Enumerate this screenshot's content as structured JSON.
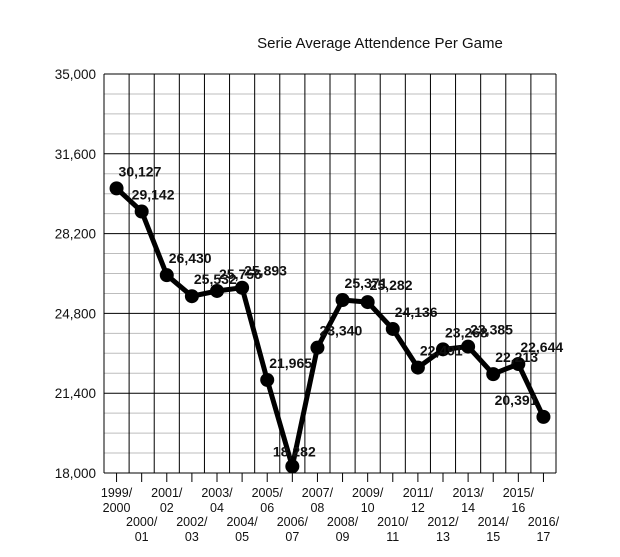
{
  "chart_data": {
    "type": "line",
    "title": "Serie Average Attendence Per Game",
    "xlabel": "",
    "ylabel": "",
    "ylim": [
      18000,
      35000
    ],
    "yticks": [
      "35,000",
      "31,600",
      "28,200",
      "24,800",
      "21,400",
      "18,000"
    ],
    "ytick_values": [
      35000,
      31600,
      28200,
      24800,
      21400,
      18000
    ],
    "grid": true,
    "legend": "none",
    "line_color": "#000000",
    "categories": [
      [
        "1999/",
        "2000"
      ],
      [
        "2000/",
        "01"
      ],
      [
        "2001/",
        "02"
      ],
      [
        "2002/",
        "03"
      ],
      [
        "2003/",
        "04"
      ],
      [
        "2004/",
        "05"
      ],
      [
        "2005/",
        "06"
      ],
      [
        "2006/",
        "07"
      ],
      [
        "2007/",
        "08"
      ],
      [
        "2008/",
        "09"
      ],
      [
        "2009/",
        "10"
      ],
      [
        "2010/",
        "11"
      ],
      [
        "2011/",
        "12"
      ],
      [
        "2012/",
        "13"
      ],
      [
        "2013/",
        "14"
      ],
      [
        "2014/",
        "15"
      ],
      [
        "2015/",
        "16"
      ],
      [
        "2016/",
        "17"
      ]
    ],
    "values": [
      30127,
      29142,
      26430,
      25532,
      25756,
      25893,
      21965,
      18282,
      23340,
      25371,
      25282,
      24136,
      22491,
      23268,
      23385,
      22213,
      22644,
      20391
    ],
    "data_labels": [
      "30,127",
      "29,142",
      "26,430",
      "25,532",
      "25,756",
      "25,893",
      "21,965",
      "18,282",
      "23,340",
      "25,371",
      "25,282",
      "24,136",
      "22,491",
      "23,268",
      "23,385",
      "22,213",
      "22,644",
      "20,391"
    ]
  }
}
